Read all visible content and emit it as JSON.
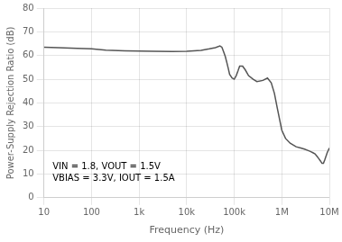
{
  "chart_data": {
    "type": "line",
    "xlabel": "Frequency (Hz)",
    "ylabel": "Power-Supply Rejection Ratio (dB)",
    "log": "x",
    "grid": true,
    "color": "#555555",
    "xlim": [
      10,
      10000000
    ],
    "ylim": [
      0,
      80
    ],
    "xticks": [
      10,
      100,
      {
        "value": 1000,
        "label": "1k"
      },
      {
        "value": 10000,
        "label": "10k"
      },
      {
        "value": 100000,
        "label": "100k"
      },
      {
        "value": 1000000,
        "label": "1M"
      },
      {
        "value": 10000000,
        "label": "10M"
      }
    ],
    "yticks": [
      0,
      10,
      20,
      30,
      40,
      50,
      60,
      70,
      80
    ],
    "x": [
      10,
      20,
      50,
      100,
      200,
      500,
      1000,
      2000,
      5000,
      10000,
      20000,
      30000,
      40000,
      50000,
      55000,
      60000,
      65000,
      70000,
      75000,
      80000,
      90000,
      100000,
      110000,
      120000,
      130000,
      150000,
      170000,
      200000,
      250000,
      300000,
      400000,
      500000,
      600000,
      700000,
      800000,
      900000,
      1000000,
      1200000,
      1500000,
      2000000,
      2500000,
      3000000,
      3500000,
      4000000,
      4500000,
      5000000,
      5500000,
      6000000,
      6500000,
      7000000,
      7500000,
      8000000,
      9000000,
      10000000
    ],
    "values": [
      63.5,
      63.3,
      63.0,
      62.8,
      62.3,
      62.0,
      61.9,
      61.8,
      61.7,
      61.8,
      62.2,
      62.8,
      63.3,
      64.0,
      63.5,
      61.5,
      59.5,
      57.0,
      54.5,
      52.0,
      50.5,
      50.0,
      51.5,
      53.5,
      55.5,
      55.5,
      54.0,
      51.5,
      50.0,
      49.0,
      49.5,
      50.5,
      48.5,
      44.0,
      38.0,
      33.0,
      28.5,
      25.0,
      23.0,
      21.5,
      21.0,
      20.5,
      20.0,
      19.5,
      19.0,
      18.5,
      17.5,
      16.5,
      15.5,
      14.5,
      14.5,
      16.0,
      19.0,
      21.0
    ],
    "annotations": [
      "VIN = 1.8, VOUT = 1.5V",
      "VBIAS = 3.3V, IOUT = 1.5A"
    ]
  }
}
